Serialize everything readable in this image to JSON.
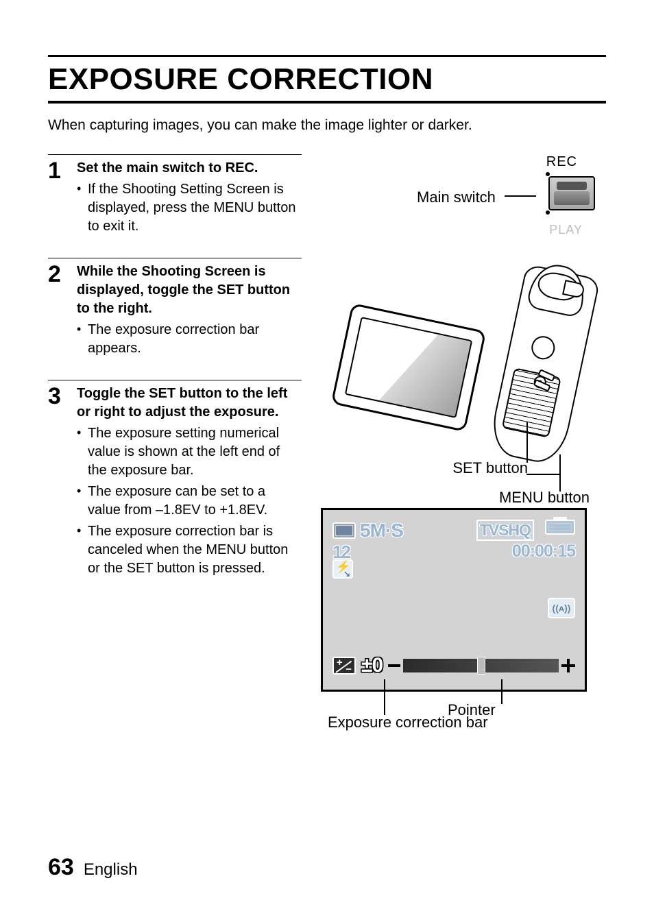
{
  "page": {
    "title": "EXPOSURE CORRECTION",
    "intro": "When capturing images, you can make the image lighter or darker.",
    "page_number": "63",
    "language": "English"
  },
  "steps": [
    {
      "num": "1",
      "head": "Set the main switch to REC.",
      "bullets": [
        "If the Shooting Setting Screen is displayed, press the MENU button to exit it."
      ]
    },
    {
      "num": "2",
      "head": "While the Shooting Screen is displayed, toggle the SET button to the right.",
      "bullets": [
        "The exposure correction bar appears."
      ]
    },
    {
      "num": "3",
      "head": "Toggle the SET button to the left or right to adjust the exposure.",
      "bullets": [
        "The exposure setting numerical value is shown at the left end of the exposure bar.",
        "The exposure can be set to a value from –1.8EV to +1.8EV.",
        "The exposure correction bar is canceled when the MENU button or the SET button is pressed."
      ]
    }
  ],
  "labels": {
    "rec": "REC",
    "play": "PLAY",
    "main_switch": "Main switch",
    "set_button": "SET button",
    "menu_button": "MENU button",
    "pointer": "Pointer",
    "exposure_bar": "Exposure correction bar"
  },
  "lcd": {
    "resolution": "5M·S",
    "shots_remaining": "12",
    "video_mode": "TVSHQ",
    "time": "00:00:15",
    "ev_value": "±0",
    "stabilizer_text": "((ᴀ))",
    "background_color": "#d3d3d3",
    "osd_color": "#98b6d3",
    "osd_outline": "#ffffff",
    "bar_gradient_start": "#2a2a2a",
    "bar_gradient_end": "#555555",
    "pointer_color": "#bcbcbc",
    "ev_range_min": -1.8,
    "ev_range_max": 1.8,
    "ev_current": 0,
    "pointer_position_pct": 50
  },
  "colors": {
    "text": "#000000",
    "background": "#ffffff",
    "play_muted": "#bfbfbf",
    "switch_body": "#a8a8a8"
  }
}
